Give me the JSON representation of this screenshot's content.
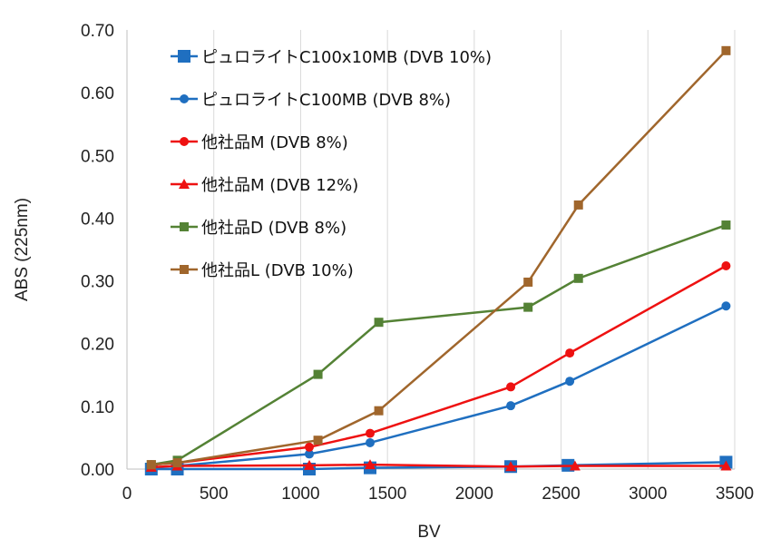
{
  "chart_data": {
    "type": "line",
    "xlabel": "BV",
    "ylabel": "ABS (225nm)",
    "xlim": [
      0,
      3500
    ],
    "ylim": [
      0,
      0.7
    ],
    "x_ticks": [
      "0",
      "500",
      "1000",
      "1500",
      "2000",
      "2500",
      "3000",
      "3500"
    ],
    "y_ticks": [
      "0.00",
      "0.10",
      "0.20",
      "0.30",
      "0.40",
      "0.50",
      "0.60",
      "0.70"
    ],
    "grid": "vertical",
    "legend_position": "top-left",
    "series": [
      {
        "name": "ピュロライトC100x10MB (DVB 10%)",
        "color": "#1F6FC0",
        "marker": "square-large",
        "x": [
          140,
          290,
          1050,
          1400,
          2210,
          2540,
          3450
        ],
        "y": [
          0.0,
          0.0,
          0.0,
          0.002,
          0.004,
          0.006,
          0.011
        ]
      },
      {
        "name": "ピュロライトC100MB (DVB 8%)",
        "color": "#1F6FC0",
        "marker": "circle",
        "x": [
          140,
          290,
          1050,
          1400,
          2210,
          2550,
          3450
        ],
        "y": [
          0.002,
          0.005,
          0.024,
          0.042,
          0.101,
          0.14,
          0.26
        ]
      },
      {
        "name": "他社品M (DVB 8%)",
        "color": "#EE1111",
        "marker": "circle",
        "x": [
          140,
          290,
          1050,
          1400,
          2210,
          2550,
          3450
        ],
        "y": [
          0.007,
          0.01,
          0.035,
          0.057,
          0.131,
          0.185,
          0.324
        ]
      },
      {
        "name": "他社品M (DVB 12%)",
        "color": "#EE1111",
        "marker": "triangle",
        "x": [
          140,
          290,
          1050,
          1400,
          2210,
          2580,
          3450
        ],
        "y": [
          0.003,
          0.005,
          0.006,
          0.007,
          0.004,
          0.005,
          0.005
        ]
      },
      {
        "name": "他社品D (DVB 8%)",
        "color": "#548235",
        "marker": "square",
        "x": [
          140,
          290,
          1100,
          1450,
          2310,
          2600,
          3450
        ],
        "y": [
          0.007,
          0.014,
          0.151,
          0.234,
          0.258,
          0.304,
          0.389
        ]
      },
      {
        "name": "他社品L (DVB 10%)",
        "color": "#A0662C",
        "marker": "square",
        "x": [
          140,
          290,
          1100,
          1450,
          2310,
          2600,
          3450
        ],
        "y": [
          0.007,
          0.01,
          0.046,
          0.093,
          0.298,
          0.421,
          0.667
        ]
      }
    ]
  }
}
